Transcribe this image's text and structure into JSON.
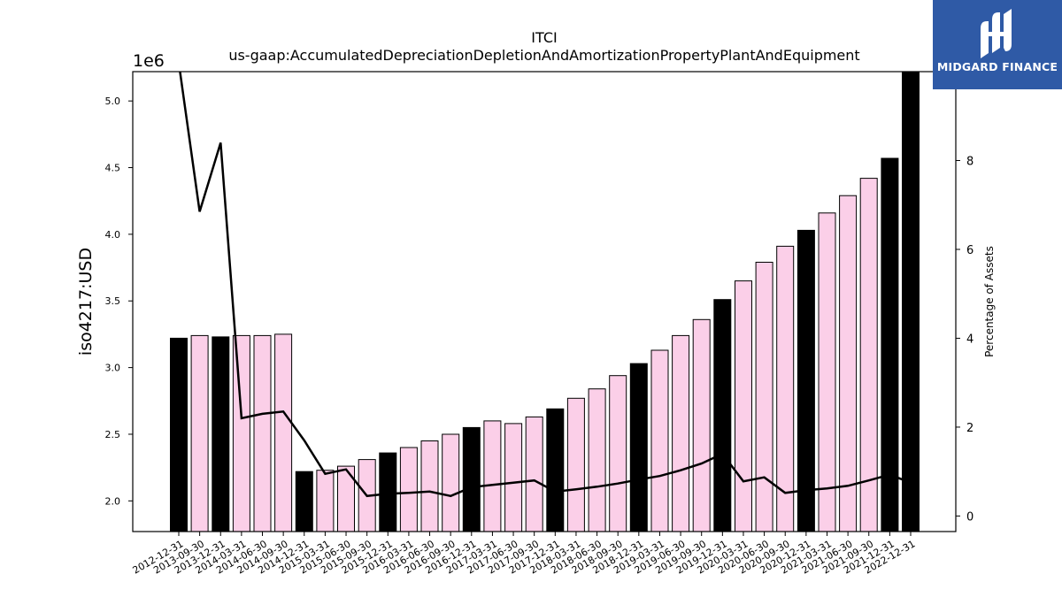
{
  "chart_data": {
    "type": "bar",
    "title": "ITCI",
    "subtitle": "us-gaap:AccumulatedDepreciationDepletionAndAmortizationPropertyPlantAndEquipment",
    "ylabel": "iso4217:USD",
    "y_offset_label": "1e6",
    "y2label": "Percentage of Assets",
    "ylim": [
      1.77,
      5.22
    ],
    "y2lim": [
      -0.35,
      10.0
    ],
    "yticks": [
      "2.0",
      "2.5",
      "3.0",
      "3.5",
      "4.0",
      "4.5",
      "5.0"
    ],
    "y2ticks": [
      "0",
      "2",
      "4",
      "6",
      "8"
    ],
    "grid": false,
    "categories": [
      "2012-12-31",
      "2013-09-30",
      "2013-12-31",
      "2014-03-31",
      "2014-06-30",
      "2014-09-30",
      "2014-12-31",
      "2015-03-31",
      "2015-06-30",
      "2015-09-30",
      "2015-12-31",
      "2016-03-31",
      "2016-06-30",
      "2016-09-30",
      "2016-12-31",
      "2017-03-31",
      "2017-06-30",
      "2017-09-30",
      "2017-12-31",
      "2018-03-31",
      "2018-06-30",
      "2018-09-30",
      "2018-12-31",
      "2019-03-31",
      "2019-06-30",
      "2019-09-30",
      "2019-12-31",
      "2020-03-31",
      "2020-06-30",
      "2020-09-30",
      "2020-12-31",
      "2021-03-31",
      "2021-06-30",
      "2021-09-30",
      "2021-12-31",
      "2022-12-31"
    ],
    "series": [
      {
        "kind": "bar",
        "values": [
          3.22,
          3.24,
          3.23,
          3.24,
          3.24,
          3.25,
          2.22,
          2.23,
          2.26,
          2.31,
          2.36,
          2.4,
          2.45,
          2.5,
          2.55,
          2.6,
          2.58,
          2.63,
          2.69,
          2.77,
          2.84,
          2.94,
          3.03,
          3.13,
          3.24,
          3.36,
          3.51,
          3.65,
          3.79,
          3.91,
          4.03,
          4.16,
          4.29,
          4.42,
          4.57,
          5.22
        ],
        "annual": [
          true,
          false,
          true,
          false,
          false,
          false,
          true,
          false,
          false,
          false,
          true,
          false,
          false,
          false,
          true,
          false,
          false,
          false,
          true,
          false,
          false,
          false,
          true,
          false,
          false,
          false,
          true,
          false,
          false,
          false,
          true,
          false,
          false,
          false,
          true,
          true
        ]
      },
      {
        "kind": "line",
        "axis": "right",
        "values": [
          10.2,
          6.85,
          8.4,
          2.2,
          2.3,
          2.35,
          1.7,
          0.95,
          1.05,
          0.45,
          0.5,
          0.52,
          0.55,
          0.45,
          0.65,
          0.7,
          0.75,
          0.8,
          0.55,
          0.6,
          0.66,
          0.73,
          0.82,
          0.9,
          1.03,
          1.18,
          1.4,
          0.78,
          0.87,
          0.52,
          0.58,
          0.62,
          0.68,
          0.8,
          0.93,
          0.75
        ]
      }
    ],
    "colors": {
      "annual_bar": "#000000",
      "quarter_bar": "#fbcfe8",
      "bar_edge": "#000000",
      "line": "#000000"
    }
  },
  "logo": {
    "text": "MIDGARD FINANCE",
    "bg": "#2f5aa6"
  }
}
